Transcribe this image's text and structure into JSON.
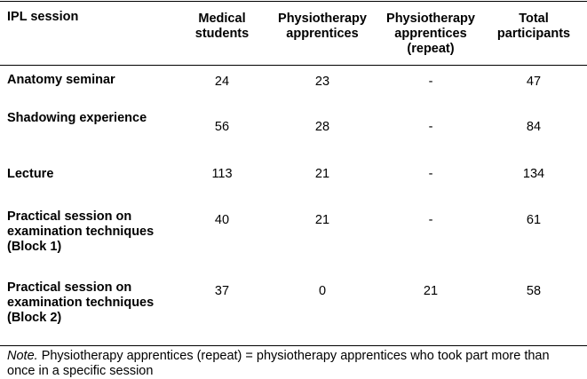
{
  "table": {
    "headers": [
      "IPL session",
      "Medical students",
      "Physiotherapy apprentices",
      "Physiotherapy apprentices (repeat)",
      "Total participants"
    ],
    "header_lines": {
      "c0": [
        "IPL session"
      ],
      "c1": [
        "Medical",
        "students"
      ],
      "c2": [
        "Physiotherapy",
        "apprentices"
      ],
      "c3": [
        "Physiotherapy",
        "apprentices",
        "(repeat)"
      ],
      "c4": [
        "Total",
        "participants"
      ]
    },
    "rows": [
      {
        "label_lines": [
          "Anatomy seminar"
        ],
        "medical": "24",
        "physio": "23",
        "repeat": "-",
        "total": "47"
      },
      {
        "label_lines": [
          "Shadowing experience"
        ],
        "medical": "56",
        "physio": "28",
        "repeat": "-",
        "total": "84"
      },
      {
        "label_lines": [
          "Lecture"
        ],
        "medical": "113",
        "physio": "21",
        "repeat": "-",
        "total": "134"
      },
      {
        "label_lines": [
          "Practical session on",
          "examination techniques",
          "(Block 1)"
        ],
        "medical": "40",
        "physio": "21",
        "repeat": "-",
        "total": "61"
      },
      {
        "label_lines": [
          "Practical session on",
          "examination techniques",
          "(Block 2)"
        ],
        "medical": "37",
        "physio": "0",
        "repeat": "21",
        "total": "58"
      }
    ]
  },
  "note": {
    "lead": "Note.",
    "line1": " Physiotherapy apprentices (repeat) = physiotherapy apprentices who took part more than",
    "line2": "once in a specific session"
  }
}
